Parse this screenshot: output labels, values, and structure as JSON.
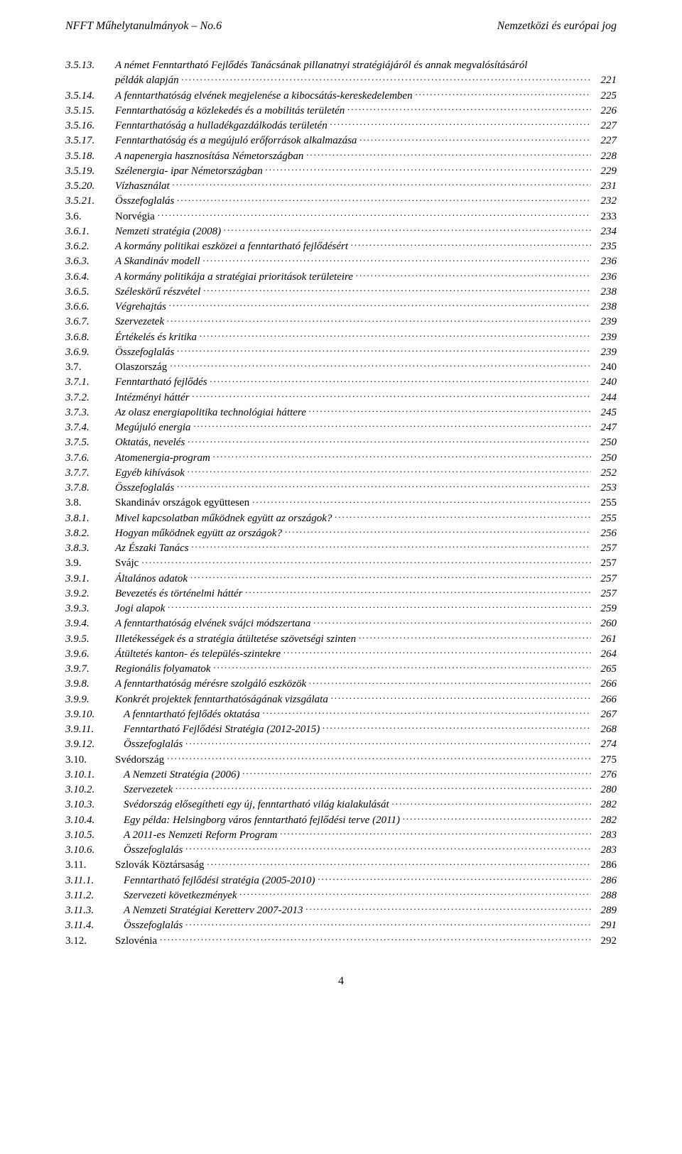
{
  "header": {
    "left": "NFFT Műhelytanulmányok – No.6",
    "right": "Nemzetközi és európai jog"
  },
  "footer": {
    "page_number": "4"
  },
  "toc": [
    {
      "n": "3.5.13.",
      "t": "A német Fenntartható Fejlődés Tanácsának pillanatnyi stratégiájáról és annak megvalósításáról példák alapján",
      "p": "221",
      "lvl": 2,
      "wrap": true
    },
    {
      "n": "3.5.14.",
      "t": "A fenntarthatóság elvének megjelenése a kibocsátás-kereskedelemben",
      "p": "225",
      "lvl": 2
    },
    {
      "n": "3.5.15.",
      "t": "Fenntarthatóság a közlekedés és a mobilitás területén",
      "p": "226",
      "lvl": 2
    },
    {
      "n": "3.5.16.",
      "t": "Fenntarthatóság a hulladékgazdálkodás területén",
      "p": "227",
      "lvl": 2
    },
    {
      "n": "3.5.17.",
      "t": "Fenntarthatóság és a megújuló erőforrások alkalmazása",
      "p": "227",
      "lvl": 2
    },
    {
      "n": "3.5.18.",
      "t": "A napenergia hasznosítása Németországban",
      "p": "228",
      "lvl": 2
    },
    {
      "n": "3.5.19.",
      "t": "Szélenergia- ipar Németországban",
      "p": "229",
      "lvl": 2
    },
    {
      "n": "3.5.20.",
      "t": "Vízhasználat",
      "p": "231",
      "lvl": 2
    },
    {
      "n": "3.5.21.",
      "t": "Összefoglalás",
      "p": "232",
      "lvl": 2
    },
    {
      "n": "3.6.",
      "t": "Norvégia",
      "p": "233",
      "lvl": 1
    },
    {
      "n": "3.6.1.",
      "t": "Nemzeti stratégia (2008)",
      "p": "234",
      "lvl": 2
    },
    {
      "n": "3.6.2.",
      "t": "A kormány politikai eszközei a fenntartható fejlődésért",
      "p": "235",
      "lvl": 2
    },
    {
      "n": "3.6.3.",
      "t": "A Skandináv modell",
      "p": "236",
      "lvl": 2
    },
    {
      "n": "3.6.4.",
      "t": "A kormány politikája a stratégiai prioritások területeire",
      "p": "236",
      "lvl": 2
    },
    {
      "n": "3.6.5.",
      "t": "Széleskörű részvétel",
      "p": "238",
      "lvl": 2
    },
    {
      "n": "3.6.6.",
      "t": "Végrehajtás",
      "p": "238",
      "lvl": 2
    },
    {
      "n": "3.6.7.",
      "t": "Szervezetek",
      "p": "239",
      "lvl": 2
    },
    {
      "n": "3.6.8.",
      "t": "Értékelés és kritika",
      "p": "239",
      "lvl": 2
    },
    {
      "n": "3.6.9.",
      "t": "Összefoglalás",
      "p": "239",
      "lvl": 2
    },
    {
      "n": "3.7.",
      "t": "Olaszország",
      "p": "240",
      "lvl": 1
    },
    {
      "n": "3.7.1.",
      "t": "Fenntartható fejlődés",
      "p": "240",
      "lvl": 2
    },
    {
      "n": "3.7.2.",
      "t": "Intézményi háttér",
      "p": "244",
      "lvl": 2
    },
    {
      "n": "3.7.3.",
      "t": "Az olasz energiapolitika technológiai háttere",
      "p": "245",
      "lvl": 2
    },
    {
      "n": "3.7.4.",
      "t": "Megújuló energia",
      "p": "247",
      "lvl": 2
    },
    {
      "n": "3.7.5.",
      "t": "Oktatás, nevelés",
      "p": "250",
      "lvl": 2
    },
    {
      "n": "3.7.6.",
      "t": "Atomenergia-program",
      "p": "250",
      "lvl": 2
    },
    {
      "n": "3.7.7.",
      "t": "Egyéb kihívások",
      "p": "252",
      "lvl": 2
    },
    {
      "n": "3.7.8.",
      "t": "Összefoglalás",
      "p": "253",
      "lvl": 2
    },
    {
      "n": "3.8.",
      "t": "Skandináv országok együttesen",
      "p": "255",
      "lvl": 1
    },
    {
      "n": "3.8.1.",
      "t": "Mivel kapcsolatban működnek együtt az országok?",
      "p": "255",
      "lvl": 2
    },
    {
      "n": "3.8.2.",
      "t": "Hogyan működnek együtt az országok?",
      "p": "256",
      "lvl": 2
    },
    {
      "n": "3.8.3.",
      "t": "Az Északi Tanács",
      "p": "257",
      "lvl": 2
    },
    {
      "n": "3.9.",
      "t": "Svájc",
      "p": "257",
      "lvl": 1
    },
    {
      "n": "3.9.1.",
      "t": "Általános adatok",
      "p": "257",
      "lvl": 2
    },
    {
      "n": "3.9.2.",
      "t": "Bevezetés és történelmi háttér",
      "p": "257",
      "lvl": 2
    },
    {
      "n": "3.9.3.",
      "t": "Jogi alapok",
      "p": "259",
      "lvl": 2
    },
    {
      "n": "3.9.4.",
      "t": "A fenntarthatóság elvének svájci módszertana",
      "p": "260",
      "lvl": 2
    },
    {
      "n": "3.9.5.",
      "t": "Illetékességek és a stratégia átültetése szövetségi szinten",
      "p": "261",
      "lvl": 2
    },
    {
      "n": "3.9.6.",
      "t": "Átültetés kanton- és település-szintekre",
      "p": "264",
      "lvl": 2
    },
    {
      "n": "3.9.7.",
      "t": "Regionális folyamatok",
      "p": "265",
      "lvl": 2
    },
    {
      "n": "3.9.8.",
      "t": "A fenntarthatóság mérésre szolgáló eszközök",
      "p": "266",
      "lvl": 2
    },
    {
      "n": "3.9.9.",
      "t": "Konkrét projektek fenntarthatóságának vizsgálata",
      "p": "266",
      "lvl": 2
    },
    {
      "n": "3.9.10.",
      "t": "A fenntartható fejlődés oktatása",
      "p": "267",
      "lvl": 2,
      "ind": true
    },
    {
      "n": "3.9.11.",
      "t": "Fenntartható Fejlődési Stratégia (2012-2015)",
      "p": "268",
      "lvl": 2,
      "ind": true
    },
    {
      "n": "3.9.12.",
      "t": "Összefoglalás",
      "p": "274",
      "lvl": 2,
      "ind": true
    },
    {
      "n": "3.10.",
      "t": "Svédország",
      "p": "275",
      "lvl": 1
    },
    {
      "n": "3.10.1.",
      "t": "A Nemzeti Stratégia (2006)",
      "p": "276",
      "lvl": 2,
      "ind": true
    },
    {
      "n": "3.10.2.",
      "t": "Szervezetek",
      "p": "280",
      "lvl": 2,
      "ind": true
    },
    {
      "n": "3.10.3.",
      "t": "Svédország elősegítheti egy új, fenntartható világ kialakulását",
      "p": "282",
      "lvl": 2,
      "ind": true
    },
    {
      "n": "3.10.4.",
      "t": "Egy példa: Helsingborg város fenntartható fejlődési terve (2011)",
      "p": "282",
      "lvl": 2,
      "ind": true
    },
    {
      "n": "3.10.5.",
      "t": "A 2011-es Nemzeti Reform Program",
      "p": "283",
      "lvl": 2,
      "ind": true
    },
    {
      "n": "3.10.6.",
      "t": "Összefoglalás",
      "p": "283",
      "lvl": 2,
      "ind": true
    },
    {
      "n": "3.11.",
      "t": "Szlovák Köztársaság",
      "p": "286",
      "lvl": 1
    },
    {
      "n": "3.11.1.",
      "t": "Fenntartható fejlődési stratégia (2005-2010)",
      "p": "286",
      "lvl": 2,
      "ind": true
    },
    {
      "n": "3.11.2.",
      "t": "Szervezeti következmények",
      "p": "288",
      "lvl": 2,
      "ind": true
    },
    {
      "n": "3.11.3.",
      "t": "A Nemzeti Stratégiai Keretterv 2007-2013",
      "p": "289",
      "lvl": 2,
      "ind": true
    },
    {
      "n": "3.11.4.",
      "t": "Összefoglalás",
      "p": "291",
      "lvl": 2,
      "ind": true
    },
    {
      "n": "3.12.",
      "t": "Szlovénia",
      "p": "292",
      "lvl": 1
    }
  ]
}
